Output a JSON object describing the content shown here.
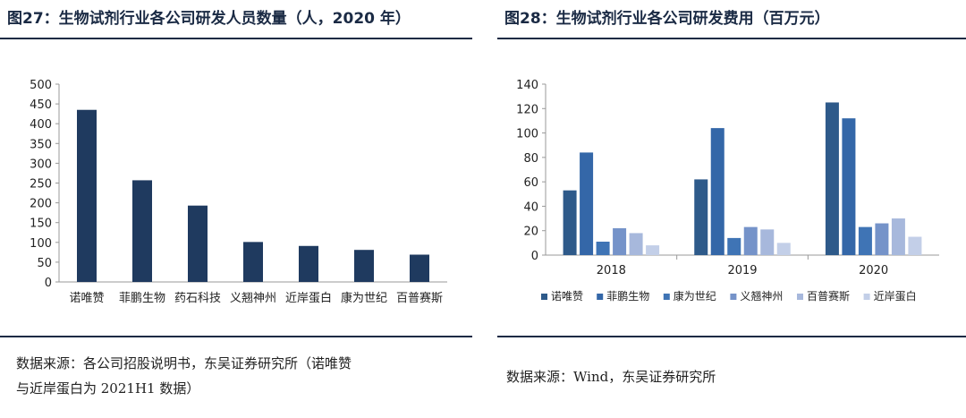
{
  "left": {
    "title": "图27：生物试剂行业各公司研发人员数量（人，2020 年）",
    "source_line1": "数据来源：各公司招股说明书，东吴证券研究所（诺唯赞",
    "source_line2": "与近岸蛋白为 2021H1 数据）"
  },
  "right": {
    "title": "图28：生物试剂行业各公司研发费用（百万元）",
    "source": "数据来源：Wind，东吴证券研究所"
  },
  "chart_data": [
    {
      "type": "bar",
      "categories": [
        "诺唯赞",
        "菲鹏生物",
        "药石科技",
        "义翘神州",
        "近岸蛋白",
        "康为世纪",
        "百普赛斯"
      ],
      "values": [
        435,
        257,
        193,
        101,
        91,
        81,
        69
      ],
      "ylim": [
        0,
        500
      ],
      "yticks": [
        0,
        50,
        100,
        150,
        200,
        250,
        300,
        350,
        400,
        450,
        500
      ],
      "grid": false,
      "color": "#1f3a5f"
    },
    {
      "type": "bar",
      "categories": [
        "2018",
        "2019",
        "2020"
      ],
      "series": [
        {
          "name": "诺唯赞",
          "values": [
            53,
            62,
            125
          ],
          "color": "#2e5a8a"
        },
        {
          "name": "菲鹏生物",
          "values": [
            84,
            104,
            112
          ],
          "color": "#3467a8"
        },
        {
          "name": "康为世纪",
          "values": [
            11,
            14,
            23
          ],
          "color": "#3f74b5"
        },
        {
          "name": "义翘神州",
          "values": [
            22,
            23,
            26
          ],
          "color": "#7593c9"
        },
        {
          "name": "百普赛斯",
          "values": [
            18,
            21,
            30
          ],
          "color": "#a7b8dc"
        },
        {
          "name": "近岸蛋白",
          "values": [
            8,
            10,
            15
          ],
          "color": "#c3cfe8"
        }
      ],
      "ylim": [
        0,
        140
      ],
      "yticks": [
        0,
        20,
        40,
        60,
        80,
        100,
        120,
        140
      ],
      "legend": "bottom",
      "grid": false
    }
  ]
}
